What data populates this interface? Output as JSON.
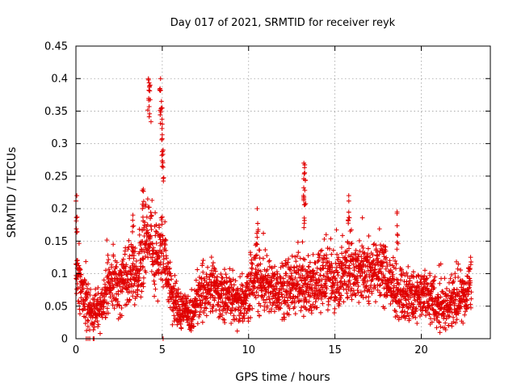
{
  "chart_data": {
    "type": "scatter",
    "title": "Day 017 of 2021, SRMTID for receiver reyk",
    "xlabel": "GPS time / hours",
    "ylabel": "SRMTID / TECUs",
    "xlim": [
      0,
      24
    ],
    "ylim": [
      0,
      0.45
    ],
    "xticks": [
      0,
      5,
      10,
      15,
      20
    ],
    "yticks": [
      0,
      0.05,
      0.1,
      0.15,
      0.2,
      0.25,
      0.3,
      0.35,
      0.4,
      0.45
    ],
    "xtick_labels": [
      "0",
      "5",
      "10",
      "15",
      "20"
    ],
    "ytick_labels": [
      "0",
      "0.05",
      "0.1",
      "0.15",
      "0.2",
      "0.25",
      "0.3",
      "0.35",
      "0.4",
      "0.45"
    ],
    "grid": true,
    "marker": "+",
    "color": "#e00000",
    "series": [
      {
        "name": "SRMTID",
        "x_range": [
          0.0,
          22.9
        ],
        "x_step_hours": 0.0083,
        "description": "dense cloud of ~2750 samples (30 s cadence)",
        "envelope_x": [
          0.0,
          0.2,
          0.4,
          0.8,
          1.2,
          1.6,
          2.0,
          2.5,
          3.0,
          3.5,
          3.8,
          4.0,
          4.2,
          4.5,
          4.8,
          5.0,
          5.3,
          5.6,
          6.0,
          6.4,
          6.7,
          7.0,
          7.5,
          8.0,
          8.5,
          9.0,
          9.5,
          10.0,
          10.3,
          10.6,
          11.0,
          12.0,
          13.0,
          13.5,
          14.0,
          14.5,
          15.0,
          15.5,
          16.0,
          16.5,
          17.0,
          17.5,
          18.0,
          18.5,
          19.0,
          19.5,
          20.0,
          20.5,
          21.0,
          21.5,
          22.0,
          22.5,
          22.9
        ],
        "envelope_center": [
          0.1,
          0.085,
          0.065,
          0.045,
          0.04,
          0.06,
          0.085,
          0.085,
          0.09,
          0.1,
          0.13,
          0.16,
          0.16,
          0.13,
          0.13,
          0.15,
          0.1,
          0.065,
          0.045,
          0.045,
          0.03,
          0.065,
          0.08,
          0.08,
          0.065,
          0.06,
          0.055,
          0.07,
          0.1,
          0.09,
          0.08,
          0.075,
          0.085,
          0.085,
          0.08,
          0.1,
          0.085,
          0.1,
          0.11,
          0.1,
          0.095,
          0.11,
          0.09,
          0.075,
          0.065,
          0.065,
          0.07,
          0.055,
          0.05,
          0.05,
          0.06,
          0.065,
          0.09
        ],
        "spikes": [
          {
            "x": 0.05,
            "y": 0.22
          },
          {
            "x": 4.2,
            "y": 0.4
          },
          {
            "x": 4.3,
            "y": 0.39
          },
          {
            "x": 4.9,
            "y": 0.4
          },
          {
            "x": 4.95,
            "y": 0.365
          },
          {
            "x": 5.0,
            "y": 0.33
          },
          {
            "x": 5.05,
            "y": 0.29
          },
          {
            "x": 3.9,
            "y": 0.23
          },
          {
            "x": 13.2,
            "y": 0.27
          },
          {
            "x": 13.25,
            "y": 0.255
          },
          {
            "x": 13.2,
            "y": 0.215
          },
          {
            "x": 15.8,
            "y": 0.22
          },
          {
            "x": 10.5,
            "y": 0.2
          },
          {
            "x": 18.6,
            "y": 0.195
          },
          {
            "x": 3.3,
            "y": 0.19
          }
        ],
        "zero_points_x": [
          0.6,
          0.7,
          0.8,
          1.0,
          1.05,
          5.05
        ]
      }
    ]
  }
}
